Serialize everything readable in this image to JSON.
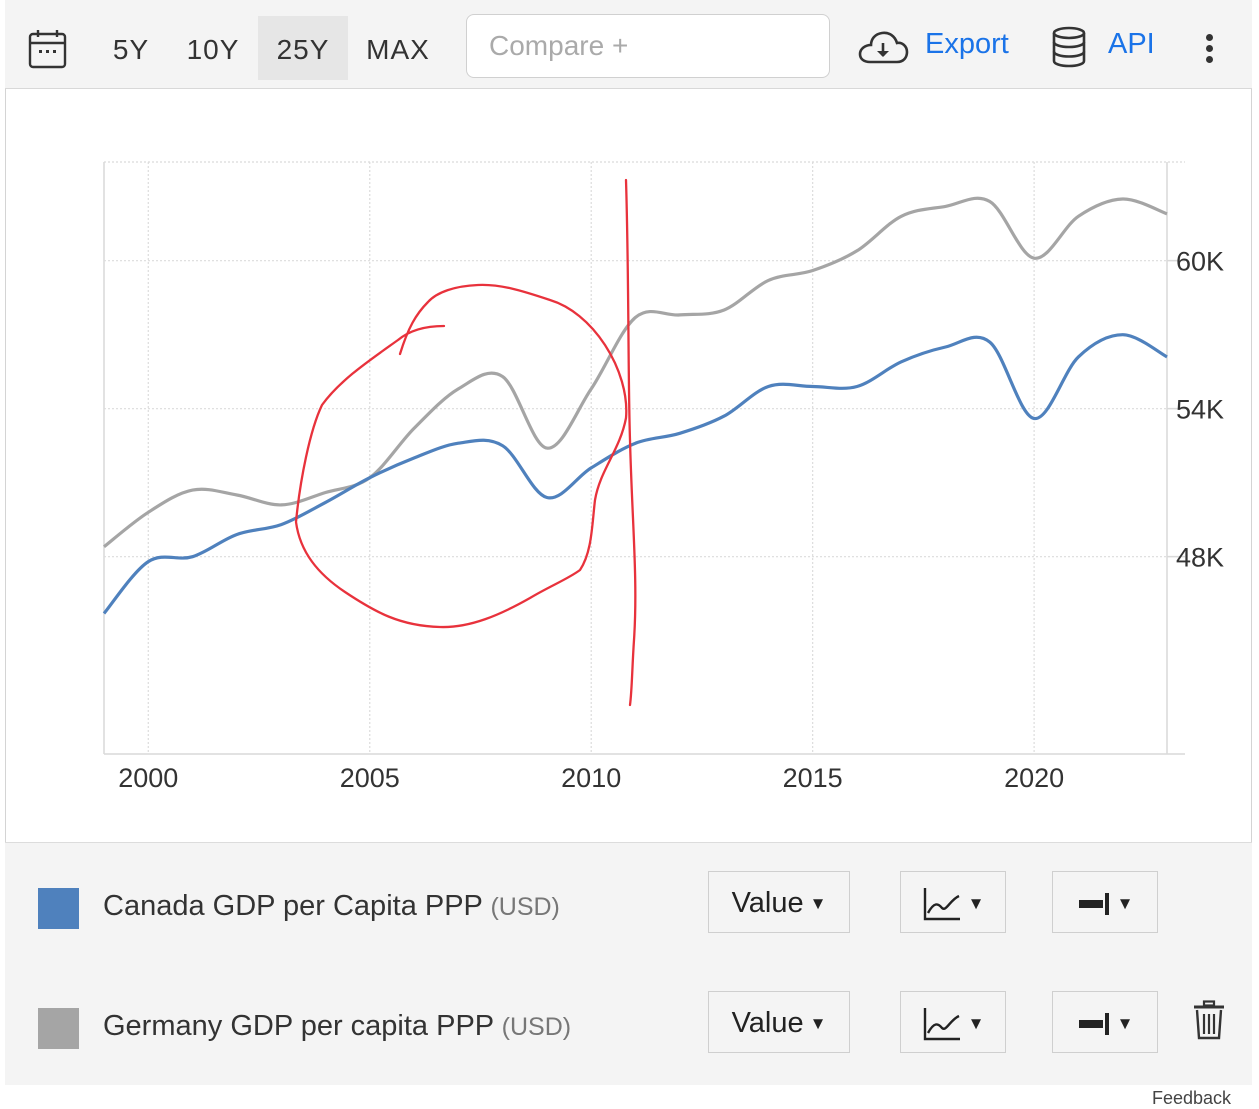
{
  "toolbar": {
    "ranges": [
      "5Y",
      "10Y",
      "25Y",
      "MAX"
    ],
    "active_range": "25Y",
    "compare_placeholder": "Compare +",
    "export_label": "Export",
    "api_label": "API",
    "icons": {
      "calendar": "calendar-icon",
      "export": "cloud-download-icon",
      "api": "database-icon",
      "menu": "kebab-menu-icon"
    }
  },
  "chart_data": {
    "type": "line",
    "x_ticks": [
      "2000",
      "2005",
      "2010",
      "2015",
      "2020"
    ],
    "y_ticks": [
      "48K",
      "54K",
      "60K"
    ],
    "xlim": [
      1999,
      2023
    ],
    "ylim": [
      40000,
      64000
    ],
    "y_axis_position": "right",
    "grid": true,
    "series": [
      {
        "name": "Canada GDP per Capita PPP",
        "unit": "(USD)",
        "color": "#4f81bd",
        "points": [
          [
            1999,
            45700
          ],
          [
            2000,
            47800
          ],
          [
            2001,
            48000
          ],
          [
            2002,
            48900
          ],
          [
            2003,
            49300
          ],
          [
            2004,
            50200
          ],
          [
            2005,
            51200
          ],
          [
            2006,
            52000
          ],
          [
            2007,
            52600
          ],
          [
            2008,
            52500
          ],
          [
            2009,
            50400
          ],
          [
            2010,
            51600
          ],
          [
            2011,
            52600
          ],
          [
            2012,
            53000
          ],
          [
            2013,
            53700
          ],
          [
            2014,
            54900
          ],
          [
            2015,
            54900
          ],
          [
            2016,
            54900
          ],
          [
            2017,
            55900
          ],
          [
            2018,
            56500
          ],
          [
            2019,
            56700
          ],
          [
            2020,
            53600
          ],
          [
            2021,
            56100
          ],
          [
            2022,
            57000
          ],
          [
            2023,
            56100
          ]
        ]
      },
      {
        "name": "Germany GDP per capita PPP",
        "unit": "(USD)",
        "color": "#a5a5a5",
        "points": [
          [
            1999,
            48400
          ],
          [
            2000,
            49800
          ],
          [
            2001,
            50700
          ],
          [
            2002,
            50500
          ],
          [
            2003,
            50100
          ],
          [
            2004,
            50600
          ],
          [
            2005,
            51200
          ],
          [
            2006,
            53200
          ],
          [
            2007,
            54800
          ],
          [
            2008,
            55300
          ],
          [
            2009,
            52400
          ],
          [
            2010,
            54800
          ],
          [
            2011,
            57700
          ],
          [
            2012,
            57800
          ],
          [
            2013,
            58000
          ],
          [
            2014,
            59200
          ],
          [
            2015,
            59600
          ],
          [
            2016,
            60400
          ],
          [
            2017,
            61800
          ],
          [
            2018,
            62200
          ],
          [
            2019,
            62400
          ],
          [
            2020,
            60100
          ],
          [
            2021,
            61800
          ],
          [
            2022,
            62500
          ],
          [
            2023,
            61900
          ]
        ]
      }
    ]
  },
  "legend": {
    "rows": [
      {
        "name": "Canada GDP per Capita PPP",
        "unit": "(USD)",
        "color": "#4f81bd",
        "value_label": "Value"
      },
      {
        "name": "Germany GDP per capita PPP",
        "unit": "(USD)",
        "color": "#a5a5a5",
        "value_label": "Value"
      }
    ],
    "icons": {
      "chart_type": "line-chart-icon",
      "axis": "axis-side-icon",
      "remove": "trash-icon"
    }
  },
  "footer": {
    "feedback_label": "Feedback"
  },
  "annotations": {
    "color": "#e8323c",
    "shapes": [
      "circle",
      "vertical-line"
    ]
  }
}
